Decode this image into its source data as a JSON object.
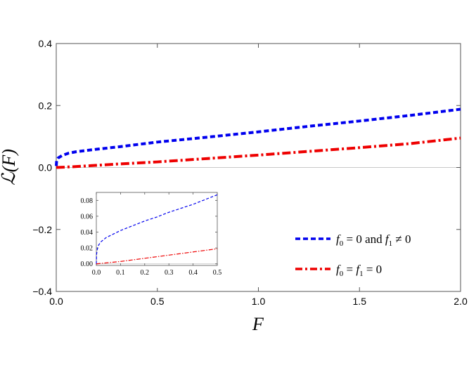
{
  "chart_data": [
    {
      "type": "line",
      "title": "",
      "xlabel": "F",
      "ylabel": "ℒ(F)",
      "xlim": [
        0,
        2
      ],
      "ylim": [
        -0.4,
        0.4
      ],
      "xticks": [
        "0.0",
        "0.5",
        "1.0",
        "1.5",
        "2.0"
      ],
      "yticks": [
        "−0.4",
        "−0.2",
        "0.0",
        "0.2",
        "0.4"
      ],
      "grid": false,
      "zero_line": true,
      "legend_position": "bottom-right",
      "series": [
        {
          "name": "f0 = 0 and f1 ≠ 0",
          "legend_parts": {
            "a": "f",
            "a_sub": "0",
            "b": " = 0 and ",
            "c": "f",
            "c_sub": "1",
            "d": " ≠ 0"
          },
          "color": "#0000ee",
          "style": "dashed",
          "x": [
            0.0,
            0.002,
            0.01,
            0.03,
            0.06,
            0.1,
            0.2,
            0.3,
            0.5,
            0.75,
            1.0,
            1.25,
            1.5,
            1.75,
            2.0
          ],
          "y": [
            0.005,
            0.022,
            0.031,
            0.039,
            0.046,
            0.051,
            0.059,
            0.066,
            0.082,
            0.098,
            0.115,
            0.133,
            0.15,
            0.168,
            0.188
          ]
        },
        {
          "name": "f0 = f1 = 0",
          "legend_parts": {
            "a": "f",
            "a_sub": "0",
            "b": " = ",
            "c": "f",
            "c_sub": "1",
            "d": " = 0"
          },
          "color": "#ee0000",
          "style": "dash-dot",
          "x": [
            0.0,
            0.1,
            0.2,
            0.3,
            0.5,
            0.75,
            1.0,
            1.25,
            1.5,
            1.75,
            2.0
          ],
          "y": [
            0.0,
            0.003,
            0.007,
            0.011,
            0.018,
            0.029,
            0.04,
            0.052,
            0.064,
            0.077,
            0.095
          ]
        }
      ]
    },
    {
      "type": "line",
      "title": "",
      "xlabel": "",
      "ylabel": "",
      "xlim": [
        0,
        0.5
      ],
      "ylim": [
        -0.002,
        0.09
      ],
      "xticks": [
        "0.0",
        "0.1",
        "0.2",
        "0.3",
        "0.4",
        "0.5"
      ],
      "yticks": [
        "0.00",
        "0.02",
        "0.04",
        "0.06",
        "0.08"
      ],
      "grid": false,
      "zero_line": true,
      "series": [
        {
          "color": "#0000ee",
          "style": "dashed",
          "x": [
            0.0,
            0.001,
            0.005,
            0.01,
            0.02,
            0.04,
            0.06,
            0.1,
            0.15,
            0.2,
            0.25,
            0.3,
            0.35,
            0.4,
            0.45,
            0.5
          ],
          "y": [
            0.0,
            0.012,
            0.02,
            0.024,
            0.028,
            0.033,
            0.036,
            0.042,
            0.048,
            0.054,
            0.059,
            0.065,
            0.07,
            0.075,
            0.081,
            0.087
          ]
        },
        {
          "color": "#ee0000",
          "style": "dash-dot",
          "x": [
            0.0,
            0.1,
            0.2,
            0.3,
            0.4,
            0.5
          ],
          "y": [
            0.0,
            0.003,
            0.007,
            0.011,
            0.015,
            0.019
          ]
        }
      ]
    }
  ]
}
